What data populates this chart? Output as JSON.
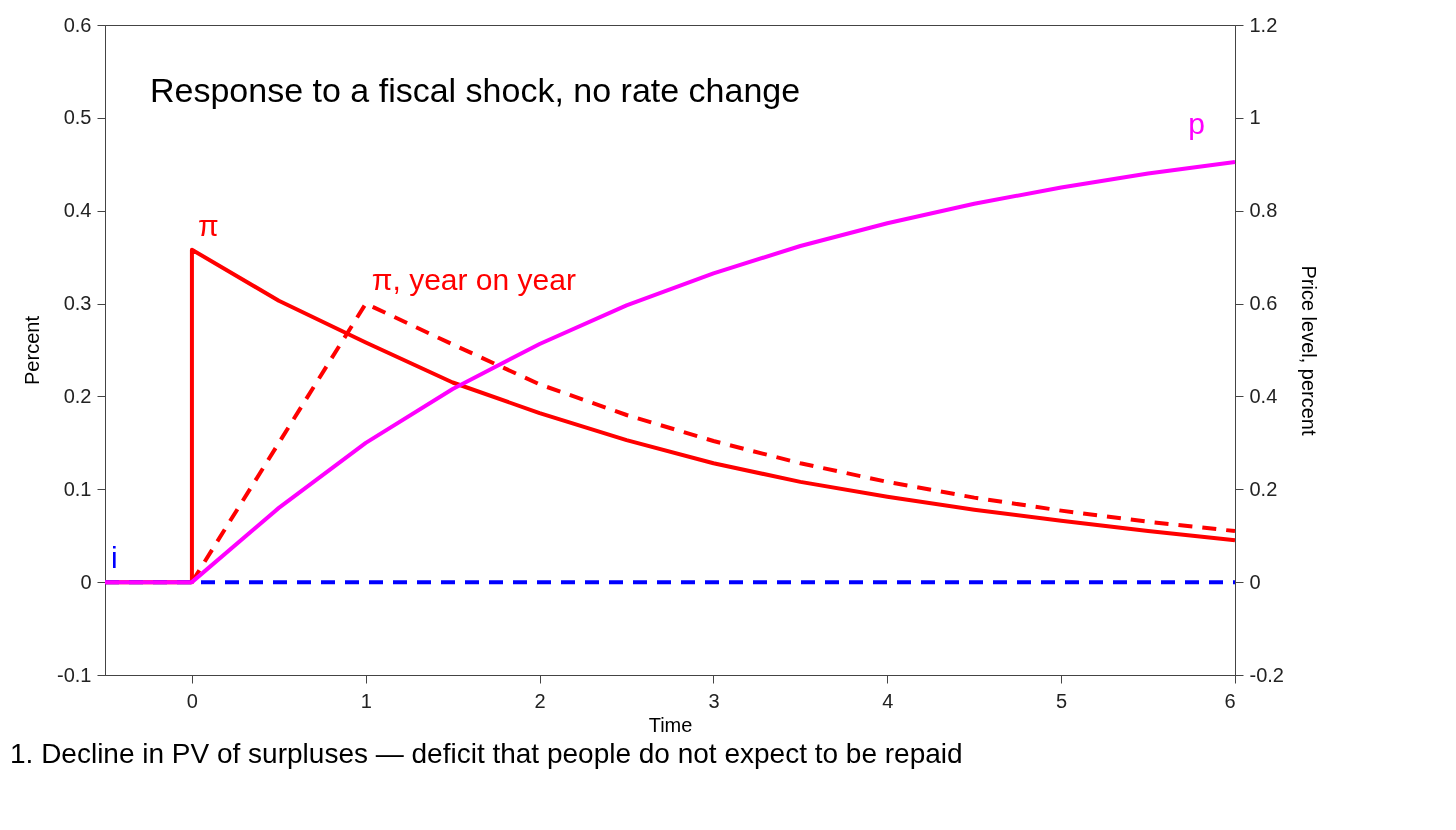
{
  "chart_data": {
    "type": "line",
    "xlabel": "Time",
    "ylabel": "Percent",
    "y2label": "Price level, percent",
    "annotations": [
      "Response to a fiscal shock, no rate change",
      "1. Decline in PV of surpluses — deficit that people do not expect to be repaid"
    ],
    "xlim": [
      -0.5,
      6
    ],
    "xticks": [
      0,
      1,
      2,
      3,
      4,
      5,
      6
    ],
    "ylim": [
      -0.1,
      0.6
    ],
    "yticks": [
      -0.1,
      0,
      0.1,
      0.2,
      0.3,
      0.4,
      0.5,
      0.6
    ],
    "y2lim": [
      -0.2,
      1.2
    ],
    "y2ticks": [
      -0.2,
      0,
      0.2,
      0.4,
      0.6,
      0.8,
      1,
      1.2
    ],
    "grid": false,
    "series": [
      {
        "name": "π",
        "color": "#ff0000",
        "line_style": "solid",
        "x": [
          -0.5,
          0,
          0,
          0.5,
          1,
          1.5,
          2,
          2.5,
          3,
          3.5,
          4,
          4.5,
          5,
          5.5,
          6
        ],
        "values": [
          0,
          0,
          0.358,
          0.303,
          0.258,
          0.215,
          0.182,
          0.153,
          0.128,
          0.108,
          0.092,
          0.078,
          0.066,
          0.055,
          0.045
        ]
      },
      {
        "name": "π, year on year",
        "color": "#ff0000",
        "line_style": "dashed",
        "x": [
          0,
          0.5,
          1,
          1.5,
          2,
          2.5,
          3,
          3.5,
          4,
          4.5,
          5,
          5.5,
          6
        ],
        "values": [
          0,
          0.15,
          0.3,
          0.256,
          0.213,
          0.18,
          0.152,
          0.128,
          0.108,
          0.091,
          0.077,
          0.065,
          0.055
        ]
      },
      {
        "name": "i",
        "color": "#0000ff",
        "line_style": "dashed",
        "x": [
          -0.5,
          0,
          6
        ],
        "values": [
          0,
          0,
          0
        ]
      },
      {
        "name": "p",
        "color": "#ff00ff",
        "line_style": "solid",
        "axis": "y2",
        "x": [
          -0.5,
          0,
          0.5,
          1,
          1.5,
          2,
          2.5,
          3,
          3.5,
          4,
          4.5,
          5,
          5.5,
          6
        ],
        "values": [
          0,
          0,
          0.16,
          0.3,
          0.416,
          0.513,
          0.596,
          0.665,
          0.724,
          0.773,
          0.815,
          0.85,
          0.88,
          0.905
        ]
      }
    ]
  }
}
